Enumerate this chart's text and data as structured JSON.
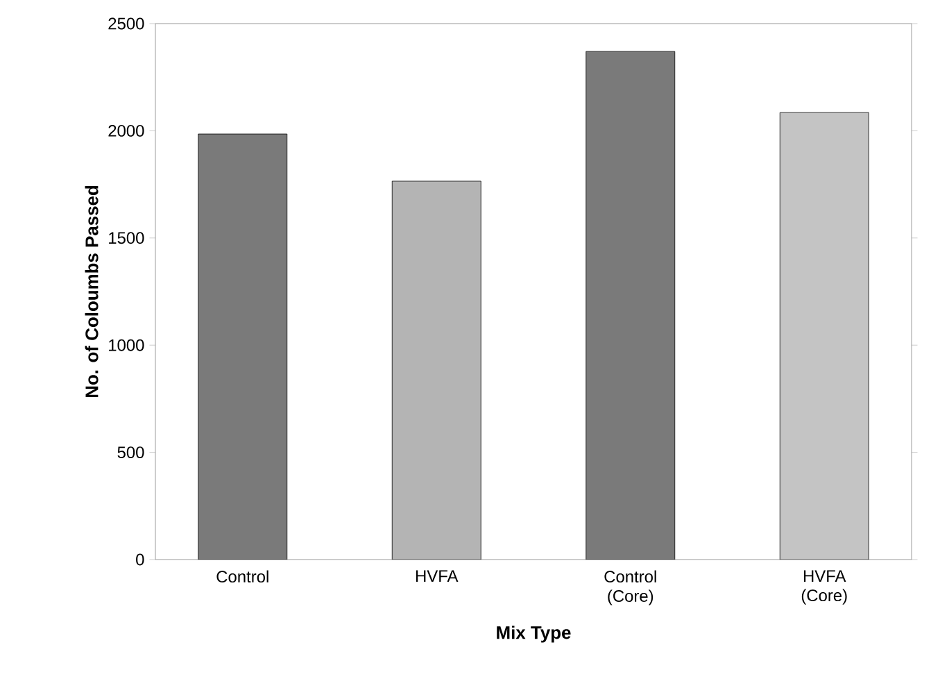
{
  "chart_data": {
    "type": "bar",
    "xlabel": "Mix Type",
    "ylabel": "No. of Coloumbs Passed",
    "categories": [
      "Control",
      "HVFA",
      "Control (Core)",
      "HVFA (Core)"
    ],
    "values": [
      1985,
      1765,
      2370,
      2085
    ],
    "colors": [
      "#7a7a7a",
      "#b4b4b4",
      "#7a7a7a",
      "#c4c4c4"
    ],
    "ylim": [
      0,
      2500
    ],
    "yticks": [
      0,
      500,
      1000,
      1500,
      2000,
      2500
    ],
    "grid": false
  }
}
